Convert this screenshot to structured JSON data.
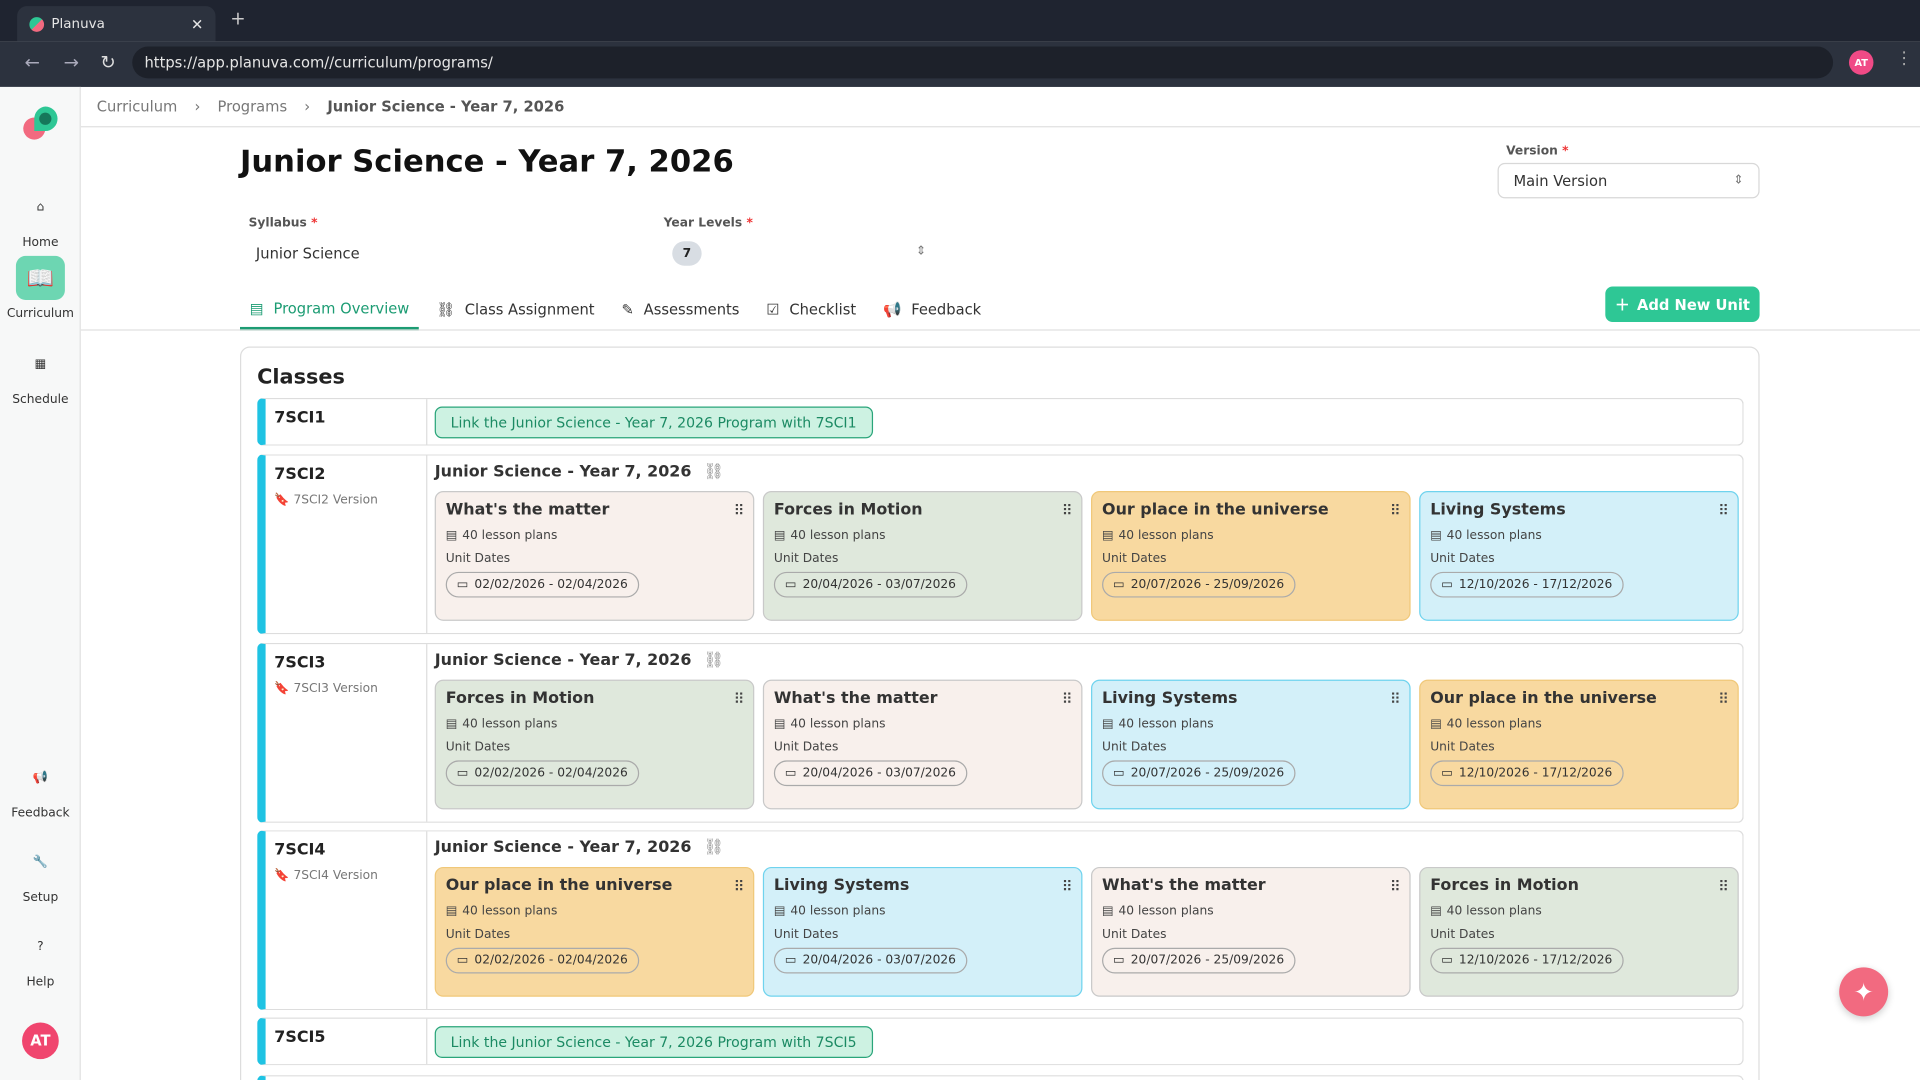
{
  "browser": {
    "tab_title": "Planuva",
    "url": "https://app.planuva.com//curriculum/programs/",
    "profile": "AT"
  },
  "sidebar": {
    "items": [
      {
        "label": "Home"
      },
      {
        "label": "Curriculum"
      },
      {
        "label": "Schedule"
      },
      {
        "label": "Feedback"
      },
      {
        "label": "Setup"
      },
      {
        "label": "Help"
      }
    ],
    "avatar": "AT"
  },
  "breadcrumb": [
    "Curriculum",
    "Programs",
    "Junior Science - Year 7, 2026"
  ],
  "page": {
    "title": "Junior Science - Year 7, 2026",
    "version_label": "Version",
    "version_value": "Main Version",
    "syllabus_label": "Syllabus",
    "syllabus_value": "Junior Science",
    "year_levels_label": "Year Levels",
    "year_level_chip": "7",
    "required": "*"
  },
  "tabs": [
    {
      "label": "Program Overview",
      "active": true
    },
    {
      "label": "Class Assignment"
    },
    {
      "label": "Assessments"
    },
    {
      "label": "Checklist"
    },
    {
      "label": "Feedback"
    }
  ],
  "add_unit_label": "Add New Unit",
  "classes_title": "Classes",
  "unit_dates_label": "Unit Dates",
  "colors": {
    "accent": "#2ec795",
    "matter": "#f8f0ec",
    "forces": "#dfe8dc",
    "universe": "#f8d9a0",
    "living": "#d3f0f9"
  },
  "rows": [
    {
      "code": "7SCI1",
      "link": "Link the Junior Science - Year 7, 2026 Program with 7SCI1"
    },
    {
      "code": "7SCI2",
      "version": "7SCI2 Version",
      "program": "Junior Science - Year 7, 2026",
      "cards": [
        {
          "title": "What's the matter",
          "lessons": "40 lesson plans",
          "dates": "02/02/2026 - 02/04/2026",
          "kind": "matter"
        },
        {
          "title": "Forces in Motion",
          "lessons": "40 lesson plans",
          "dates": "20/04/2026 - 03/07/2026",
          "kind": "forces"
        },
        {
          "title": "Our place in the universe",
          "lessons": "40 lesson plans",
          "dates": "20/07/2026 - 25/09/2026",
          "kind": "universe"
        },
        {
          "title": "Living Systems",
          "lessons": "40 lesson plans",
          "dates": "12/10/2026 - 17/12/2026",
          "kind": "living"
        }
      ]
    },
    {
      "code": "7SCI3",
      "version": "7SCI3 Version",
      "program": "Junior Science - Year 7, 2026",
      "cards": [
        {
          "title": "Forces in Motion",
          "lessons": "40 lesson plans",
          "dates": "02/02/2026 - 02/04/2026",
          "kind": "forces"
        },
        {
          "title": "What's the matter",
          "lessons": "40 lesson plans",
          "dates": "20/04/2026 - 03/07/2026",
          "kind": "matter"
        },
        {
          "title": "Living Systems",
          "lessons": "40 lesson plans",
          "dates": "20/07/2026 - 25/09/2026",
          "kind": "living"
        },
        {
          "title": "Our place in the universe",
          "lessons": "40 lesson plans",
          "dates": "12/10/2026 - 17/12/2026",
          "kind": "universe"
        }
      ]
    },
    {
      "code": "7SCI4",
      "version": "7SCI4 Version",
      "program": "Junior Science - Year 7, 2026",
      "cards": [
        {
          "title": "Our place in the universe",
          "lessons": "40 lesson plans",
          "dates": "02/02/2026 - 02/04/2026",
          "kind": "universe"
        },
        {
          "title": "Living Systems",
          "lessons": "40 lesson plans",
          "dates": "20/04/2026 - 03/07/2026",
          "kind": "living"
        },
        {
          "title": "What's the matter",
          "lessons": "40 lesson plans",
          "dates": "20/07/2026 - 25/09/2026",
          "kind": "matter"
        },
        {
          "title": "Forces in Motion",
          "lessons": "40 lesson plans",
          "dates": "12/10/2026 - 17/12/2026",
          "kind": "forces"
        }
      ]
    },
    {
      "code": "7SCI5",
      "link": "Link the Junior Science - Year 7, 2026 Program with 7SCI5"
    }
  ]
}
